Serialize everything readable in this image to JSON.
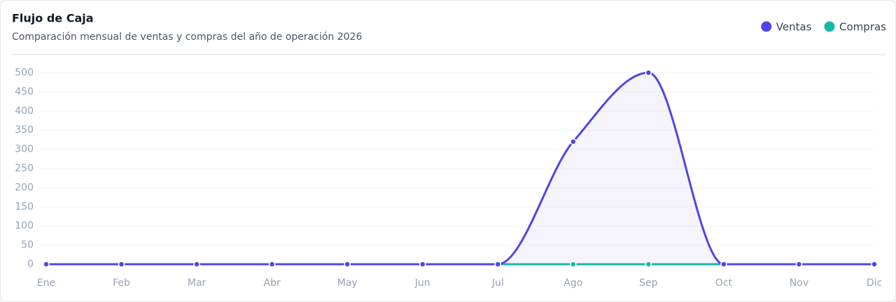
{
  "chart_data": {
    "type": "line",
    "title": "Flujo de Caja",
    "subtitle": "Comparación mensual de ventas y compras del año de operación 2026",
    "categories": [
      "Ene",
      "Feb",
      "Mar",
      "Abr",
      "May",
      "Jun",
      "Jul",
      "Ago",
      "Sep",
      "Oct",
      "Nov",
      "Dic"
    ],
    "series": [
      {
        "name": "Ventas",
        "color": "#4f46e5",
        "values": [
          0,
          0,
          0,
          0,
          0,
          0,
          0,
          320,
          500,
          0,
          0,
          0
        ]
      },
      {
        "name": "Compras",
        "color": "#14b8a6",
        "values": [
          0,
          0,
          0,
          0,
          0,
          0,
          0,
          0,
          0,
          0,
          0,
          0
        ]
      }
    ],
    "ylim": [
      0,
      500
    ],
    "yticks": [
      0,
      50,
      100,
      150,
      200,
      250,
      300,
      350,
      400,
      450,
      500
    ],
    "grid": true,
    "legend": "top-right"
  }
}
